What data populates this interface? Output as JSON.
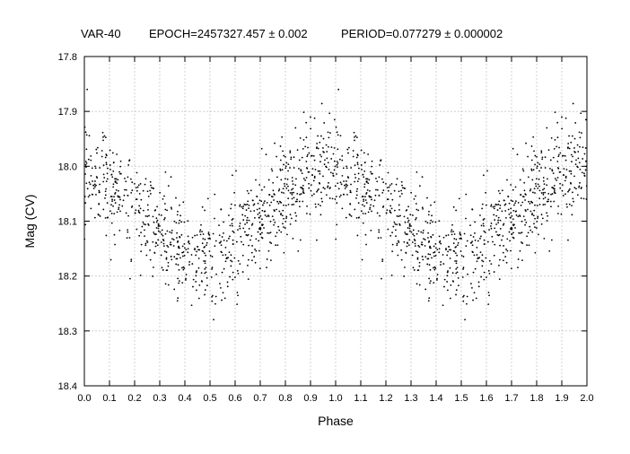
{
  "chart_data": {
    "type": "scatter",
    "title": {
      "name": "VAR-40",
      "epoch": "EPOCH=2457327.457 ± 0.002",
      "period": "PERIOD=0.077279 ± 0.000002"
    },
    "xlabel": "Phase",
    "ylabel": "Mag (CV)",
    "xlim": [
      0.0,
      2.0
    ],
    "ylim": [
      18.4,
      17.8
    ],
    "y_axis_inverted": true,
    "grid": true,
    "x_ticks": [
      "0.0",
      "0.1",
      "0.2",
      "0.3",
      "0.4",
      "0.5",
      "0.6",
      "0.7",
      "0.8",
      "0.9",
      "1.0",
      "1.1",
      "1.2",
      "1.3",
      "1.4",
      "1.5",
      "1.6",
      "1.7",
      "1.8",
      "1.9",
      "2.0"
    ],
    "y_ticks": [
      "17.8",
      "17.9",
      "18.0",
      "18.1",
      "18.2",
      "18.3",
      "18.4"
    ],
    "marker_color": "#000000",
    "grid_color": "#c8c8c8",
    "trend": {
      "phase": [
        0.0,
        0.05,
        0.1,
        0.15,
        0.2,
        0.25,
        0.3,
        0.35,
        0.4,
        0.45,
        0.5,
        0.55,
        0.6,
        0.65,
        0.7,
        0.75,
        0.8,
        0.85,
        0.9,
        0.95,
        1.0
      ],
      "mag": [
        18.01,
        18.02,
        18.03,
        18.05,
        18.07,
        18.09,
        18.11,
        18.13,
        18.15,
        18.16,
        18.17,
        18.16,
        18.14,
        18.12,
        18.1,
        18.07,
        18.05,
        18.03,
        18.01,
        18.0,
        18.01
      ]
    },
    "points_per_cycle": 900,
    "scatter_sigma_mag": 0.045
  }
}
